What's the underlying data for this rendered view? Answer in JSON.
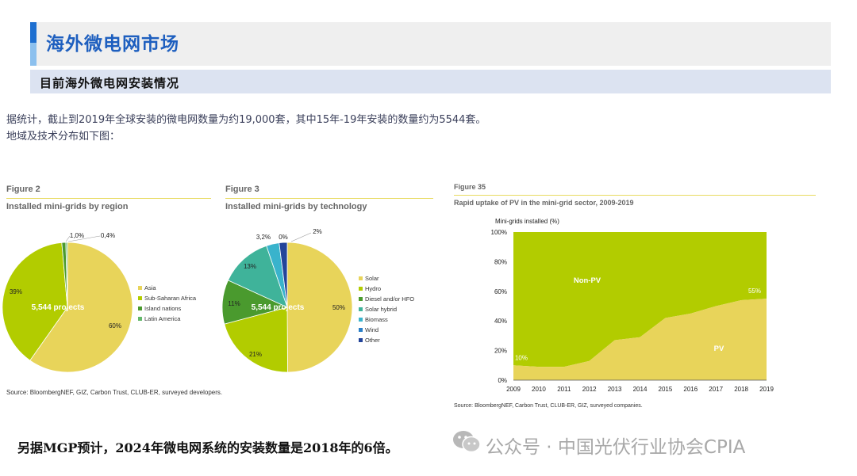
{
  "header": {
    "title": "海外微电网市场",
    "subtitle": "目前海外微电网安装情况"
  },
  "intro": {
    "line1": "据统计，截止到2019年全球安装的微电网数量为约19,000套，其中15年-19年安装的数量约为5544套。",
    "line2": "地域及技术分布如下图："
  },
  "figures": {
    "fig2": {
      "number": "Figure 2",
      "caption": "Installed mini-grids by region"
    },
    "fig3": {
      "number": "Figure 3",
      "caption": "Installed mini-grids by technology"
    },
    "fig35": {
      "number": "Figure 35",
      "caption": "Rapid uptake of PV in the mini-grid sector, 2009-2019"
    }
  },
  "sources": {
    "left": "Source: BloombergNEF, GIZ, Carbon Trust, CLUB-ER, surveyed developers.",
    "right": "Source: BloombergNEF, Carbon Trust, CLUB-ER, GIZ, surveyed companies."
  },
  "footer": {
    "text": "另据MGP预计，2024年微电网系统的安装数量是2018年的6倍。"
  },
  "watermark": {
    "text": "公众号 · 中国光伏行业协会CPIA",
    "icon": "wechat-icon"
  },
  "colors": {
    "accent_blue": "#1e6fd0",
    "title_blue": "#1e5fbf",
    "yellow": "#e8d45a",
    "lime": "#b2cc00",
    "green": "#4a9a2e",
    "light_green": "#63b86b",
    "teal": "#3fb39a",
    "cyan": "#39b3cc",
    "navy": "#23449a"
  },
  "chart_data": [
    {
      "type": "pie",
      "title": "Installed mini-grids by region",
      "center_label": "5,544 projects",
      "slices": [
        {
          "label": "Asia",
          "value": 60,
          "text": "60%",
          "color": "#e8d45a"
        },
        {
          "label": "Sub-Saharan Africa",
          "value": 39,
          "text": "39%",
          "color": "#b2cc00"
        },
        {
          "label": "Island nations",
          "value": 1.0,
          "text": "1,0%",
          "color": "#4a9a2e"
        },
        {
          "label": "Latin America",
          "value": 0.4,
          "text": "0,4%",
          "color": "#63b86b"
        }
      ],
      "legend": [
        "Asia",
        "Sub-Saharan Africa",
        "Island nations",
        "Latin America"
      ]
    },
    {
      "type": "pie",
      "title": "Installed mini-grids by technology",
      "center_label": "5,544 projects",
      "slices": [
        {
          "label": "Solar",
          "value": 50,
          "text": "50%",
          "color": "#e8d45a"
        },
        {
          "label": "Hydro",
          "value": 21,
          "text": "21%",
          "color": "#b2cc00"
        },
        {
          "label": "Diesel and/or HFO",
          "value": 11,
          "text": "11%",
          "color": "#4a9a2e"
        },
        {
          "label": "Solar hybrid",
          "value": 13,
          "text": "13%",
          "color": "#3fb39a"
        },
        {
          "label": "Biomass",
          "value": 3.2,
          "text": "3,2%",
          "color": "#39b3cc"
        },
        {
          "label": "Wind",
          "value": 0,
          "text": "0%",
          "color": "#2a7fc8"
        },
        {
          "label": "Other",
          "value": 2,
          "text": "2%",
          "color": "#23449a"
        }
      ],
      "legend": [
        "Solar",
        "Hydro",
        "Diesel and/or HFO",
        "Solar hybrid",
        "Biomass",
        "Wind",
        "Other"
      ]
    },
    {
      "type": "area",
      "title": "Rapid uptake of PV in the mini-grid sector, 2009-2019",
      "ylabel": "Mini-grids installed (%)",
      "x": [
        2009,
        2010,
        2011,
        2012,
        2013,
        2014,
        2015,
        2016,
        2017,
        2018,
        2019
      ],
      "yticks": [
        "0%",
        "20%",
        "40%",
        "60%",
        "80%",
        "100%"
      ],
      "ylim": [
        0,
        100
      ],
      "series": [
        {
          "name": "PV",
          "values": [
            10,
            9,
            9,
            13,
            27,
            29,
            42,
            45,
            50,
            54,
            55
          ],
          "color": "#e8d45a"
        },
        {
          "name": "Non-PV",
          "values": [
            90,
            91,
            91,
            87,
            73,
            71,
            58,
            55,
            50,
            46,
            45
          ],
          "color": "#b2cc00"
        }
      ],
      "annotations": [
        {
          "text": "10%",
          "x": 2009,
          "y": 10
        },
        {
          "text": "55%",
          "x": 2019,
          "y": 55
        }
      ]
    }
  ]
}
